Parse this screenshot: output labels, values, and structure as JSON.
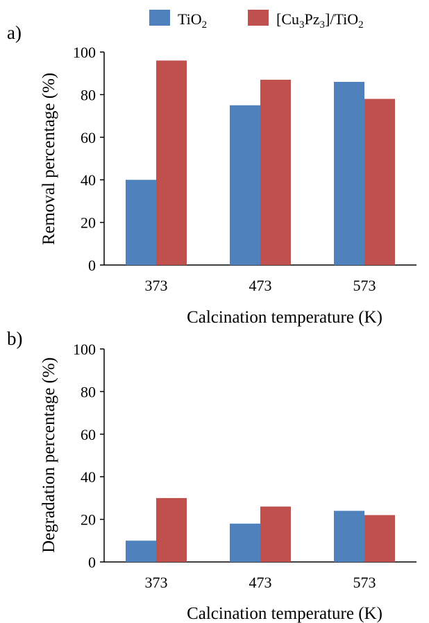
{
  "legend": {
    "items": [
      {
        "label": "TiO",
        "sub": "2",
        "color": "#4f81bd"
      },
      {
        "label": "[Cu",
        "sub": "3",
        "mid": "Pz",
        "sub2": "3",
        "tail": "]/TiO",
        "sub3": "2",
        "color": "#c0504d"
      }
    ]
  },
  "chart_data": [
    {
      "panel_label": "a)",
      "type": "bar",
      "categories": [
        "373",
        "473",
        "573"
      ],
      "series": [
        {
          "name": "TiO2",
          "color": "#4f81bd",
          "values": [
            40,
            75,
            86
          ]
        },
        {
          "name": "[Cu3Pz3]/TiO2",
          "color": "#c0504d",
          "values": [
            96,
            87,
            78
          ]
        }
      ],
      "ylabel": "Removal percentage (%)",
      "xlabel": "Calcination temperature (K)",
      "ylim": [
        0,
        100
      ],
      "yticks": [
        0,
        20,
        40,
        60,
        80,
        100
      ],
      "grid": false,
      "legend_position": "top"
    },
    {
      "panel_label": "b)",
      "type": "bar",
      "categories": [
        "373",
        "473",
        "573"
      ],
      "series": [
        {
          "name": "TiO2",
          "color": "#4f81bd",
          "values": [
            10,
            18,
            24
          ]
        },
        {
          "name": "[Cu3Pz3]/TiO2",
          "color": "#c0504d",
          "values": [
            30,
            26,
            22
          ]
        }
      ],
      "ylabel": "Degradation percentage (%)",
      "xlabel": "Calcination temperature (K)",
      "ylim": [
        0,
        100
      ],
      "yticks": [
        0,
        20,
        40,
        60,
        80,
        100
      ],
      "grid": false,
      "legend_position": "top"
    }
  ]
}
